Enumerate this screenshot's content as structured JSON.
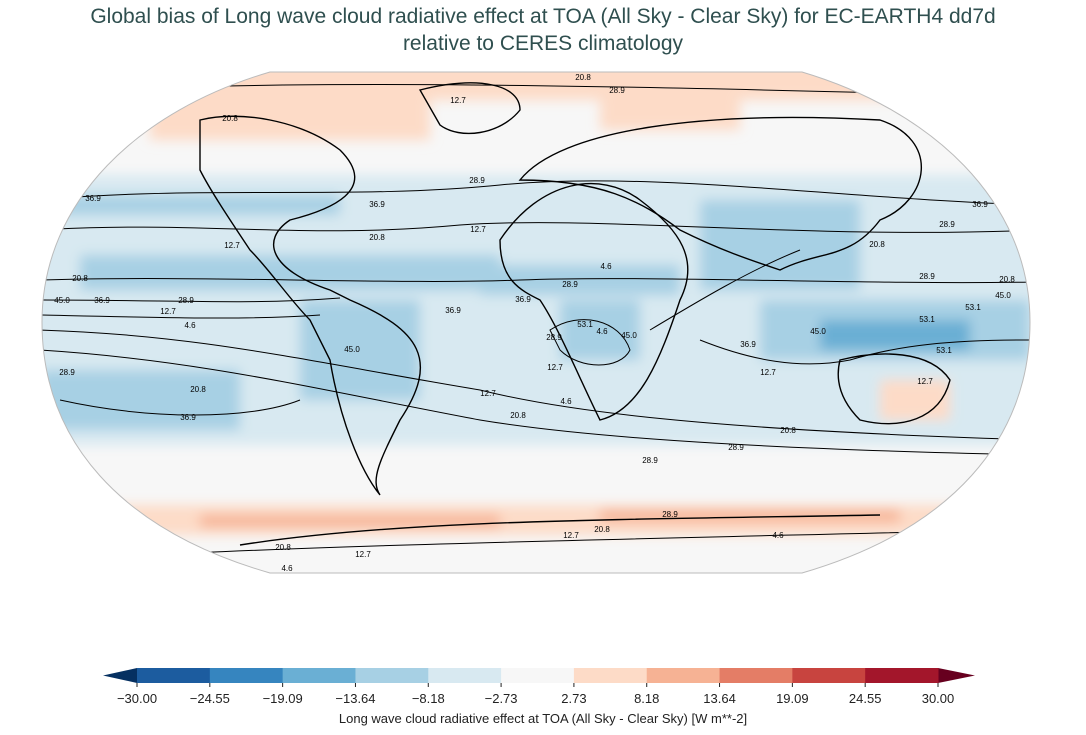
{
  "title": {
    "line1": "Global bias of Long wave cloud radiative effect at TOA (All Sky - Clear Sky) for EC-EARTH4 dd7d",
    "line2": "relative to CERES climatology"
  },
  "colorbar": {
    "label": "Long wave cloud radiative effect at TOA (All Sky - Clear Sky) [W m**-2]",
    "ticks": [
      "−30.00",
      "−24.55",
      "−19.09",
      "−13.64",
      "−8.18",
      "−2.73",
      "2.73",
      "8.18",
      "13.64",
      "19.09",
      "24.55",
      "30.00"
    ],
    "colors": [
      "#1c5c9f",
      "#3685bf",
      "#6aafd4",
      "#a7d0e4",
      "#d8e9f1",
      "#f7f7f7",
      "#fddbc7",
      "#f6b294",
      "#e47d66",
      "#c8443f",
      "#a3162b"
    ],
    "under_color": "#053061",
    "over_color": "#67001f",
    "extend": "both"
  },
  "map": {
    "projection": "Robinson",
    "contour_labels": [
      "20.8",
      "28.9",
      "12.7",
      "20.8",
      "36.9",
      "28.9",
      "36.9",
      "20.8",
      "12.7",
      "28.9",
      "36.9",
      "12.7",
      "20.8",
      "4.6",
      "20.8",
      "28.9",
      "20.8",
      "45.0",
      "36.9",
      "28.9",
      "12.7",
      "4.6",
      "53.1",
      "45.0",
      "36.9",
      "28.9",
      "53.1",
      "45.0",
      "28.9",
      "12.7",
      "45.0",
      "36.9",
      "53.1",
      "12.7",
      "4.6",
      "20.8",
      "36.9",
      "12.7",
      "20.8",
      "28.9",
      "20.8",
      "28.9",
      "4.6",
      "28.9",
      "20.8",
      "12.7",
      "4.6",
      "12.7",
      "4.6",
      "28.9",
      "20.8",
      "45.0",
      "53.1",
      "36.9",
      "12.7"
    ]
  }
}
